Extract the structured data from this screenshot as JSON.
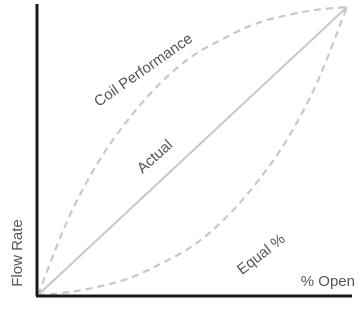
{
  "chart_data": {
    "type": "line",
    "xlabel": "% Open",
    "ylabel": "Flow Rate",
    "xlim": [
      0,
      1
    ],
    "ylim": [
      0,
      1
    ],
    "grid": false,
    "ticks": false,
    "colors": {
      "axis": "#1a1a1a",
      "actual": "#c8c8c8",
      "curves": "#c8c8c8",
      "text": "#555555"
    },
    "series": [
      {
        "name": "Coil Performance",
        "style": "dashed",
        "x": [
          0,
          0.1,
          0.2,
          0.3,
          0.4,
          0.5,
          0.6,
          0.7,
          0.8,
          0.9,
          1.0
        ],
        "y": [
          0,
          0.27,
          0.47,
          0.62,
          0.74,
          0.83,
          0.89,
          0.94,
          0.97,
          0.99,
          1.0
        ]
      },
      {
        "name": "Actual",
        "style": "solid",
        "x": [
          0,
          1.0
        ],
        "y": [
          0,
          1.0
        ]
      },
      {
        "name": "Equal %",
        "style": "dashed",
        "x": [
          0,
          0.1,
          0.2,
          0.3,
          0.4,
          0.5,
          0.6,
          0.7,
          0.8,
          0.9,
          1.0
        ],
        "y": [
          0,
          0.01,
          0.03,
          0.06,
          0.11,
          0.17,
          0.26,
          0.38,
          0.53,
          0.73,
          1.0
        ]
      }
    ]
  }
}
